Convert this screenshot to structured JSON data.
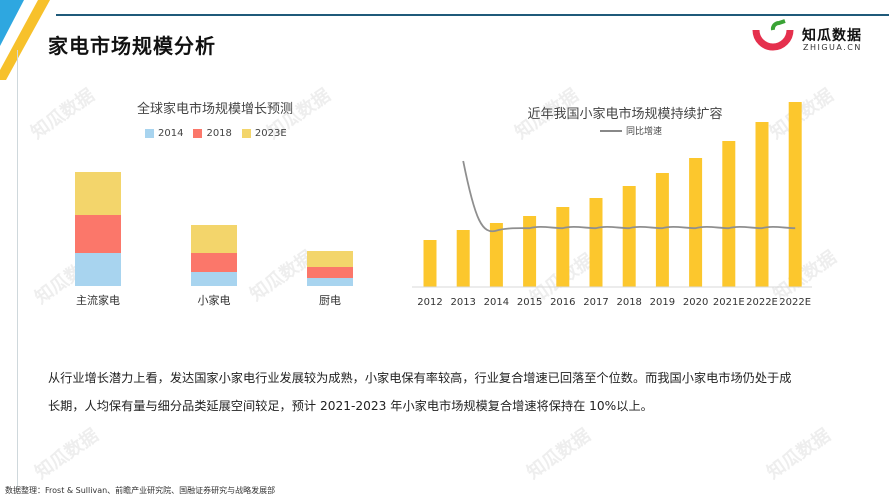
{
  "page": {
    "title": "家电市场规模分析",
    "logo_text": "知瓜数据",
    "logo_sub": "ZHIGUA.CN",
    "watermark": "知瓜数据",
    "paragraph_line1": "从行业增长潜力上看，发达国家小家电行业发展较为成熟，小家电保有率较高，行业复合增速已回落至个位数。而我国小家电市场仍处于成",
    "paragraph_line2": "长期，人均保有量与细分品类延展空间较足，预计 2021-2023 年小家电市场规模复合增速将保持在 10%以上。",
    "source": "数据整理：Frost & Sullivan、前瞻产业研究院、国融证券研究与战略发展部"
  },
  "colors": {
    "s2014": "#a8d4ef",
    "s2018": "#fb776a",
    "s2023": "#f3d56b",
    "bar": "#fcc72d",
    "line": "#8f8f8f",
    "accent_blue": "#2ea7e0",
    "accent_yellow": "#f7c12b",
    "logo_red": "#e5304d",
    "logo_green": "#3aa335"
  },
  "chart_data": [
    {
      "type": "bar",
      "stacked": true,
      "title": "全球家电市场规模增长预测",
      "categories": [
        "主流家电",
        "小家电",
        "厨电"
      ],
      "series": [
        {
          "name": "2014",
          "values": [
            33,
            14,
            8
          ]
        },
        {
          "name": "2018",
          "values": [
            38,
            19,
            11
          ]
        },
        {
          "name": "2023E",
          "values": [
            43,
            28,
            16
          ]
        }
      ],
      "legend": "top",
      "grid": false
    },
    {
      "type": "bar",
      "title": "近年我国小家电市场规模持续扩容",
      "categories": [
        "2012",
        "2013",
        "2014",
        "2015",
        "2016",
        "2017",
        "2018",
        "2019",
        "2020",
        "2021E",
        "2022E",
        "2022E"
      ],
      "bar_values": [
        47,
        57,
        64,
        71,
        80,
        89,
        101,
        114,
        129,
        146,
        165,
        185
      ],
      "line_name": "同比增速",
      "line_values": [
        null,
        70,
        12,
        14,
        14,
        14,
        14,
        14,
        14,
        14,
        14,
        14
      ],
      "legend": "top",
      "grid": false
    }
  ]
}
